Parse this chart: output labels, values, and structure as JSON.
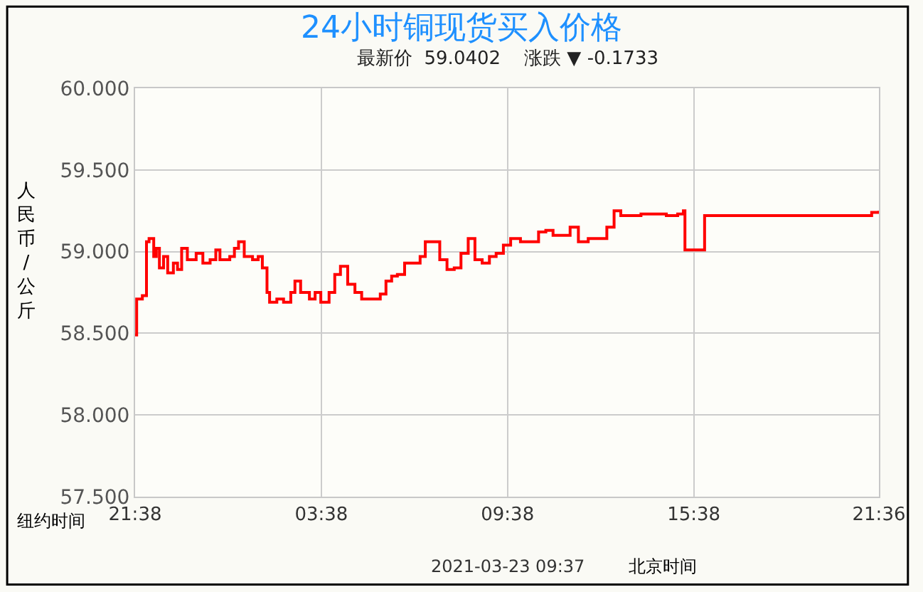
{
  "chart_data": {
    "type": "step",
    "title": "24小时铜现货买入价格",
    "subtitle": "最新价  59.0402    涨跌 ▼ -0.1733",
    "ylabel": "人民币/公斤",
    "annotations": [
      "纽约时间",
      "2021-03-23 09:37",
      "北京时间"
    ],
    "x": [
      "2021-03-21T21:38",
      "2021-03-21T21:41",
      "2021-03-21T21:52",
      "2021-03-21T22:00",
      "2021-03-21T22:05",
      "2021-03-21T22:14",
      "2021-03-21T22:19",
      "2021-03-21T22:25",
      "2021-03-21T22:33",
      "2021-03-21T22:41",
      "2021-03-21T22:52",
      "2021-03-21T23:00",
      "2021-03-21T23:08",
      "2021-03-21T23:19",
      "2021-03-21T23:36",
      "2021-03-21T23:49",
      "2021-03-22T00:03",
      "2021-03-22T00:14",
      "2021-03-22T00:22",
      "2021-03-22T00:41",
      "2021-03-22T00:50",
      "2021-03-22T00:58",
      "2021-03-22T01:09",
      "2021-03-22T01:25",
      "2021-03-22T01:36",
      "2021-03-22T01:44",
      "2021-03-22T01:53",
      "2021-03-22T01:58",
      "2021-03-22T02:12",
      "2021-03-22T02:25",
      "2021-03-22T02:39",
      "2021-03-22T02:47",
      "2021-03-22T02:58",
      "2021-03-22T03:15",
      "2021-03-22T03:26",
      "2021-03-22T03:37",
      "2021-03-22T03:53",
      "2021-03-22T04:04",
      "2021-03-22T04:15",
      "2021-03-22T04:29",
      "2021-03-22T04:43",
      "2021-03-22T04:56",
      "2021-03-22T05:16",
      "2021-03-22T05:32",
      "2021-03-22T05:43",
      "2021-03-22T05:54",
      "2021-03-22T06:05",
      "2021-03-22T06:19",
      "2021-03-22T06:32",
      "2021-03-22T06:49",
      "2021-03-22T06:59",
      "2021-03-22T07:13",
      "2021-03-22T07:27",
      "2021-03-22T07:41",
      "2021-03-22T07:55",
      "2021-03-22T08:08",
      "2021-03-22T08:22",
      "2021-03-22T08:35",
      "2021-03-22T08:49",
      "2021-03-22T09:03",
      "2021-03-22T09:16",
      "2021-03-22T09:30",
      "2021-03-22T09:44",
      "2021-03-22T10:03",
      "2021-03-22T10:25",
      "2021-03-22T10:38",
      "2021-03-22T10:52",
      "2021-03-22T11:06",
      "2021-03-22T11:25",
      "2021-03-22T11:39",
      "2021-03-22T11:55",
      "2021-03-22T12:14",
      "2021-03-22T12:34",
      "2021-03-22T12:50",
      "2021-03-22T13:04",
      "2021-03-22T13:17",
      "2021-03-22T13:40",
      "2021-03-22T13:56",
      "2021-03-22T14:18",
      "2021-03-22T14:45",
      "2021-03-22T15:07",
      "2021-03-22T15:18",
      "2021-03-22T15:21",
      "2021-03-22T15:40",
      "2021-03-22T15:56",
      "2021-03-22T15:59",
      "2021-03-22T18:52",
      "2021-03-22T21:08",
      "2021-03-22T21:22",
      "2021-03-22T21:36"
    ],
    "series": [
      {
        "color": "#ff0000",
        "values": [
          58.49,
          58.71,
          58.73,
          59.06,
          59.08,
          58.97,
          59.02,
          58.9,
          58.97,
          58.87,
          58.93,
          58.89,
          59.02,
          58.95,
          58.99,
          58.93,
          58.95,
          59.01,
          58.95,
          58.97,
          59.02,
          59.06,
          58.97,
          58.95,
          58.97,
          58.9,
          58.75,
          58.69,
          58.71,
          58.69,
          58.75,
          58.82,
          58.75,
          58.71,
          58.75,
          58.69,
          58.75,
          58.86,
          58.91,
          58.8,
          58.75,
          58.71,
          58.71,
          58.74,
          58.82,
          58.85,
          58.86,
          58.93,
          58.93,
          58.97,
          59.06,
          59.06,
          58.95,
          58.89,
          58.9,
          58.99,
          59.08,
          58.95,
          58.93,
          58.97,
          58.99,
          59.04,
          59.08,
          59.06,
          59.06,
          59.12,
          59.13,
          59.1,
          59.1,
          59.15,
          59.06,
          59.08,
          59.08,
          59.15,
          59.25,
          59.22,
          59.22,
          59.23,
          59.23,
          59.22,
          59.23,
          59.25,
          59.01,
          59.01,
          59.01,
          59.22,
          59.22,
          59.22,
          59.24,
          59.25
        ]
      }
    ],
    "xlim": [
      "2021-03-21T21:38",
      "2021-03-22T21:36"
    ],
    "xticks": [
      {
        "value": "2021-03-21T21:38",
        "label": "21:38"
      },
      {
        "value": "2021-03-22T03:38",
        "label": "03:38"
      },
      {
        "value": "2021-03-22T09:38",
        "label": "09:38"
      },
      {
        "value": "2021-03-22T15:38",
        "label": "15:38"
      },
      {
        "value": "2021-03-22T21:36",
        "label": "21:36"
      }
    ],
    "ylim": [
      57.5,
      60
    ],
    "yticks": [
      {
        "value": 57.5,
        "label": "57.500"
      },
      {
        "value": 58,
        "label": "58.000"
      },
      {
        "value": 58.5,
        "label": "58.500"
      },
      {
        "value": 59,
        "label": "59.000"
      },
      {
        "value": 59.5,
        "label": "59.500"
      },
      {
        "value": 60,
        "label": "60.000"
      }
    ],
    "grid": true,
    "marker": "none",
    "line_style": "solid"
  }
}
